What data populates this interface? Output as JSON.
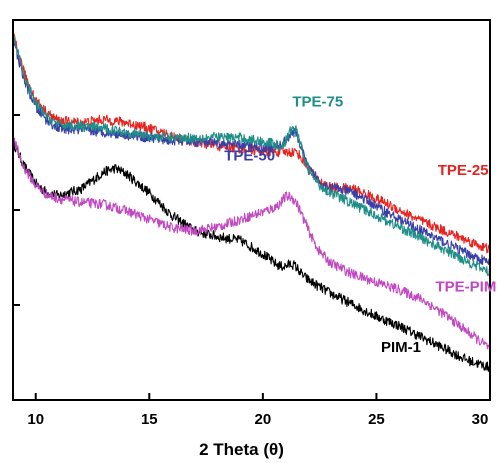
{
  "chart_data": {
    "type": "line",
    "title": "",
    "xlabel": "2 Theta (θ)",
    "ylabel": "",
    "xlim": [
      9,
      30
    ],
    "ylim": [
      0,
      100
    ],
    "x_ticks": [
      10,
      15,
      20,
      25,
      30
    ],
    "y_tick_count": 4,
    "grid": false,
    "legend": "none",
    "series": [
      {
        "name": "TPE-25",
        "color": "#e8231f",
        "label_anchor": [
          27.7,
          59.2
        ],
        "points": [
          [
            9,
            96
          ],
          [
            9.5,
            86
          ],
          [
            10,
            79
          ],
          [
            10.5,
            75.5
          ],
          [
            11,
            73.5
          ],
          [
            12,
            73
          ],
          [
            13,
            73.8
          ],
          [
            14,
            73
          ],
          [
            15,
            71.5
          ],
          [
            16,
            69.5
          ],
          [
            17,
            67.8
          ],
          [
            18,
            66.8
          ],
          [
            19,
            66.2
          ],
          [
            20,
            65.5
          ],
          [
            21,
            65.2
          ],
          [
            21.5,
            65.3
          ],
          [
            22,
            61
          ],
          [
            22.5,
            57.5
          ],
          [
            23,
            56
          ],
          [
            24,
            55.5
          ],
          [
            25,
            53
          ],
          [
            26,
            50
          ],
          [
            27,
            47
          ],
          [
            28,
            44.5
          ],
          [
            29,
            42
          ],
          [
            30,
            39.5
          ]
        ],
        "peaks": []
      },
      {
        "name": "TPE-50",
        "color": "#3a3fa8",
        "label_anchor": [
          18.3,
          63
        ],
        "points": [
          [
            9,
            95
          ],
          [
            9.5,
            84
          ],
          [
            10,
            77
          ],
          [
            10.5,
            73.5
          ],
          [
            11,
            71.5
          ],
          [
            12,
            71
          ],
          [
            13,
            70.5
          ],
          [
            14,
            69.8
          ],
          [
            15,
            69
          ],
          [
            16,
            68.3
          ],
          [
            17,
            68
          ],
          [
            18,
            67.5
          ],
          [
            19,
            67
          ],
          [
            20,
            66.5
          ],
          [
            21,
            66.5
          ],
          [
            21.5,
            67.5
          ],
          [
            22,
            61
          ],
          [
            22.5,
            57.5
          ],
          [
            23,
            56
          ],
          [
            24,
            54.5
          ],
          [
            25,
            51
          ],
          [
            26,
            47.5
          ],
          [
            27,
            44.5
          ],
          [
            28,
            41.5
          ],
          [
            29,
            38.5
          ],
          [
            30,
            36
          ]
        ],
        "peaks": [
          [
            21.3,
            3,
            0.3
          ]
        ]
      },
      {
        "name": "TPE-75",
        "color": "#1e8e86",
        "label_anchor": [
          21.3,
          77.2
        ],
        "points": [
          [
            9,
            96
          ],
          [
            9.5,
            85
          ],
          [
            10,
            78
          ],
          [
            10.5,
            74.5
          ],
          [
            11,
            72.5
          ],
          [
            12,
            72
          ],
          [
            13,
            71.5
          ],
          [
            14,
            70.5
          ],
          [
            15,
            69.5
          ],
          [
            16,
            69
          ],
          [
            17,
            69
          ],
          [
            18,
            69.2
          ],
          [
            19,
            69
          ],
          [
            20,
            68
          ],
          [
            20.5,
            67.5
          ],
          [
            22,
            60
          ],
          [
            22.5,
            56.5
          ],
          [
            23,
            54.5
          ],
          [
            24,
            51.5
          ],
          [
            25,
            48.5
          ],
          [
            26,
            45.5
          ],
          [
            27,
            42.5
          ],
          [
            28,
            39.5
          ],
          [
            29,
            36.5
          ],
          [
            30,
            33.5
          ]
        ],
        "peaks": [
          [
            21.4,
            8.5,
            0.28
          ]
        ]
      },
      {
        "name": "TPE-PIM",
        "color": "#c148c1",
        "label_anchor": [
          27.6,
          28.5
        ],
        "points": [
          [
            9,
            69
          ],
          [
            9.5,
            61
          ],
          [
            10,
            56.5
          ],
          [
            10.5,
            54
          ],
          [
            11,
            53
          ],
          [
            12,
            52
          ],
          [
            13,
            51.5
          ],
          [
            14,
            49.8
          ],
          [
            15,
            47.5
          ],
          [
            16,
            45.3
          ],
          [
            17,
            44.5
          ],
          [
            18,
            45.5
          ],
          [
            19,
            47.5
          ],
          [
            20,
            49.5
          ],
          [
            21,
            51.5
          ],
          [
            22,
            44
          ],
          [
            22.5,
            39
          ],
          [
            23,
            36
          ],
          [
            24,
            33
          ],
          [
            25,
            31
          ],
          [
            26,
            29
          ],
          [
            27,
            26.5
          ],
          [
            28,
            22.5
          ],
          [
            29,
            18
          ],
          [
            30,
            13.5
          ]
        ],
        "peaks": [
          [
            21.4,
            4,
            0.35
          ]
        ]
      },
      {
        "name": "PIM-1",
        "color": "#000000",
        "label_anchor": [
          25.2,
          12.6
        ],
        "points": [
          [
            9,
            68
          ],
          [
            9.5,
            61.5
          ],
          [
            10,
            57
          ],
          [
            10.5,
            54.5
          ],
          [
            11,
            53.8
          ],
          [
            12,
            55.5
          ],
          [
            13,
            60
          ],
          [
            13.5,
            61
          ],
          [
            14,
            59.5
          ],
          [
            15,
            54.5
          ],
          [
            16,
            48.5
          ],
          [
            17,
            44.5
          ],
          [
            18,
            43
          ],
          [
            19,
            42
          ],
          [
            20,
            38.5
          ],
          [
            21,
            33.5
          ],
          [
            22,
            31.5
          ],
          [
            23,
            28
          ],
          [
            24,
            25
          ],
          [
            25,
            22
          ],
          [
            26,
            19.5
          ],
          [
            27,
            16.5
          ],
          [
            28,
            13.5
          ],
          [
            29,
            10.5
          ],
          [
            30,
            8.5
          ]
        ],
        "peaks": [
          [
            21.3,
            2.8,
            0.3
          ]
        ]
      }
    ]
  }
}
